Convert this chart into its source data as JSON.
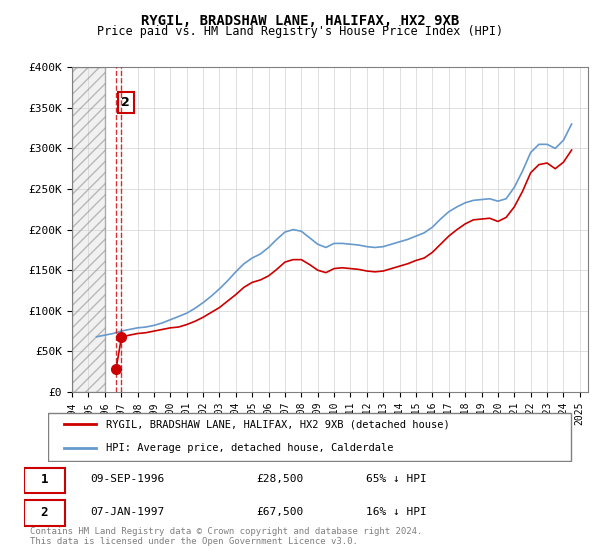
{
  "title": "RYGIL, BRADSHAW LANE, HALIFAX, HX2 9XB",
  "subtitle": "Price paid vs. HM Land Registry's House Price Index (HPI)",
  "red_label": "RYGIL, BRADSHAW LANE, HALIFAX, HX2 9XB (detached house)",
  "blue_label": "HPI: Average price, detached house, Calderdale",
  "footer": "Contains HM Land Registry data © Crown copyright and database right 2024.\nThis data is licensed under the Open Government Licence v3.0.",
  "sales": [
    {
      "label": "1",
      "date": "09-SEP-1996",
      "price": 28500,
      "x": 1996.69,
      "hpi_pct": "65% ↓ HPI"
    },
    {
      "label": "2",
      "date": "07-JAN-1997",
      "price": 67500,
      "x": 1997.02,
      "hpi_pct": "16% ↓ HPI"
    }
  ],
  "ylim": [
    0,
    400000
  ],
  "xlim_left": 1994.0,
  "xlim_right": 2025.5,
  "hatch_end": 1996.0,
  "red_color": "#cc0000",
  "blue_color": "#6699cc",
  "hpi_x": [
    1995.5,
    1996.0,
    1996.5,
    1997.0,
    1997.5,
    1998.0,
    1998.5,
    1999.0,
    1999.5,
    2000.0,
    2000.5,
    2001.0,
    2001.5,
    2002.0,
    2002.5,
    2003.0,
    2003.5,
    2004.0,
    2004.5,
    2005.0,
    2005.5,
    2006.0,
    2006.5,
    2007.0,
    2007.5,
    2008.0,
    2008.5,
    2009.0,
    2009.5,
    2010.0,
    2010.5,
    2011.0,
    2011.5,
    2012.0,
    2012.5,
    2013.0,
    2013.5,
    2014.0,
    2014.5,
    2015.0,
    2015.5,
    2016.0,
    2016.5,
    2017.0,
    2017.5,
    2018.0,
    2018.5,
    2019.0,
    2019.5,
    2020.0,
    2020.5,
    2021.0,
    2021.5,
    2022.0,
    2022.5,
    2023.0,
    2023.5,
    2024.0,
    2024.5
  ],
  "hpi_y": [
    68000,
    70000,
    72000,
    75000,
    77000,
    79000,
    80000,
    82000,
    85000,
    89000,
    93000,
    97000,
    103000,
    110000,
    118000,
    127000,
    137000,
    148000,
    158000,
    165000,
    170000,
    178000,
    188000,
    197000,
    200000,
    198000,
    190000,
    182000,
    178000,
    183000,
    183000,
    182000,
    181000,
    179000,
    178000,
    179000,
    182000,
    185000,
    188000,
    192000,
    196000,
    203000,
    213000,
    222000,
    228000,
    233000,
    236000,
    237000,
    238000,
    235000,
    238000,
    252000,
    272000,
    295000,
    305000,
    305000,
    300000,
    310000,
    330000
  ],
  "red_x": [
    1996.69,
    1997.02,
    1997.5,
    1998.0,
    1998.5,
    1999.0,
    1999.5,
    2000.0,
    2000.5,
    2001.0,
    2001.5,
    2002.0,
    2002.5,
    2003.0,
    2003.5,
    2004.0,
    2004.5,
    2005.0,
    2005.5,
    2006.0,
    2006.5,
    2007.0,
    2007.5,
    2008.0,
    2008.5,
    2009.0,
    2009.5,
    2010.0,
    2010.5,
    2011.0,
    2011.5,
    2012.0,
    2012.5,
    2013.0,
    2013.5,
    2014.0,
    2014.5,
    2015.0,
    2015.5,
    2016.0,
    2016.5,
    2017.0,
    2017.5,
    2018.0,
    2018.5,
    2019.0,
    2019.5,
    2020.0,
    2020.5,
    2021.0,
    2021.5,
    2022.0,
    2022.5,
    2023.0,
    2023.5,
    2024.0,
    2024.5
  ],
  "red_y": [
    28500,
    67500,
    70000,
    72000,
    73000,
    75000,
    77000,
    79000,
    80000,
    83000,
    87000,
    92000,
    98000,
    104000,
    112000,
    120000,
    129000,
    135000,
    138000,
    143000,
    151000,
    160000,
    163000,
    163000,
    157000,
    150000,
    147000,
    152000,
    153000,
    152000,
    151000,
    149000,
    148000,
    149000,
    152000,
    155000,
    158000,
    162000,
    165000,
    172000,
    182000,
    192000,
    200000,
    207000,
    212000,
    213000,
    214000,
    210000,
    215000,
    228000,
    247000,
    270000,
    280000,
    282000,
    275000,
    283000,
    298000
  ],
  "yticks": [
    0,
    50000,
    100000,
    150000,
    200000,
    250000,
    300000,
    350000,
    400000
  ],
  "ytick_labels": [
    "£0",
    "£50K",
    "£100K",
    "£150K",
    "£200K",
    "£250K",
    "£300K",
    "£350K",
    "£400K"
  ],
  "xticks": [
    1994,
    1995,
    1996,
    1997,
    1998,
    1999,
    2000,
    2001,
    2002,
    2003,
    2004,
    2005,
    2006,
    2007,
    2008,
    2009,
    2010,
    2011,
    2012,
    2013,
    2014,
    2015,
    2016,
    2017,
    2018,
    2019,
    2020,
    2021,
    2022,
    2023,
    2024,
    2025
  ]
}
